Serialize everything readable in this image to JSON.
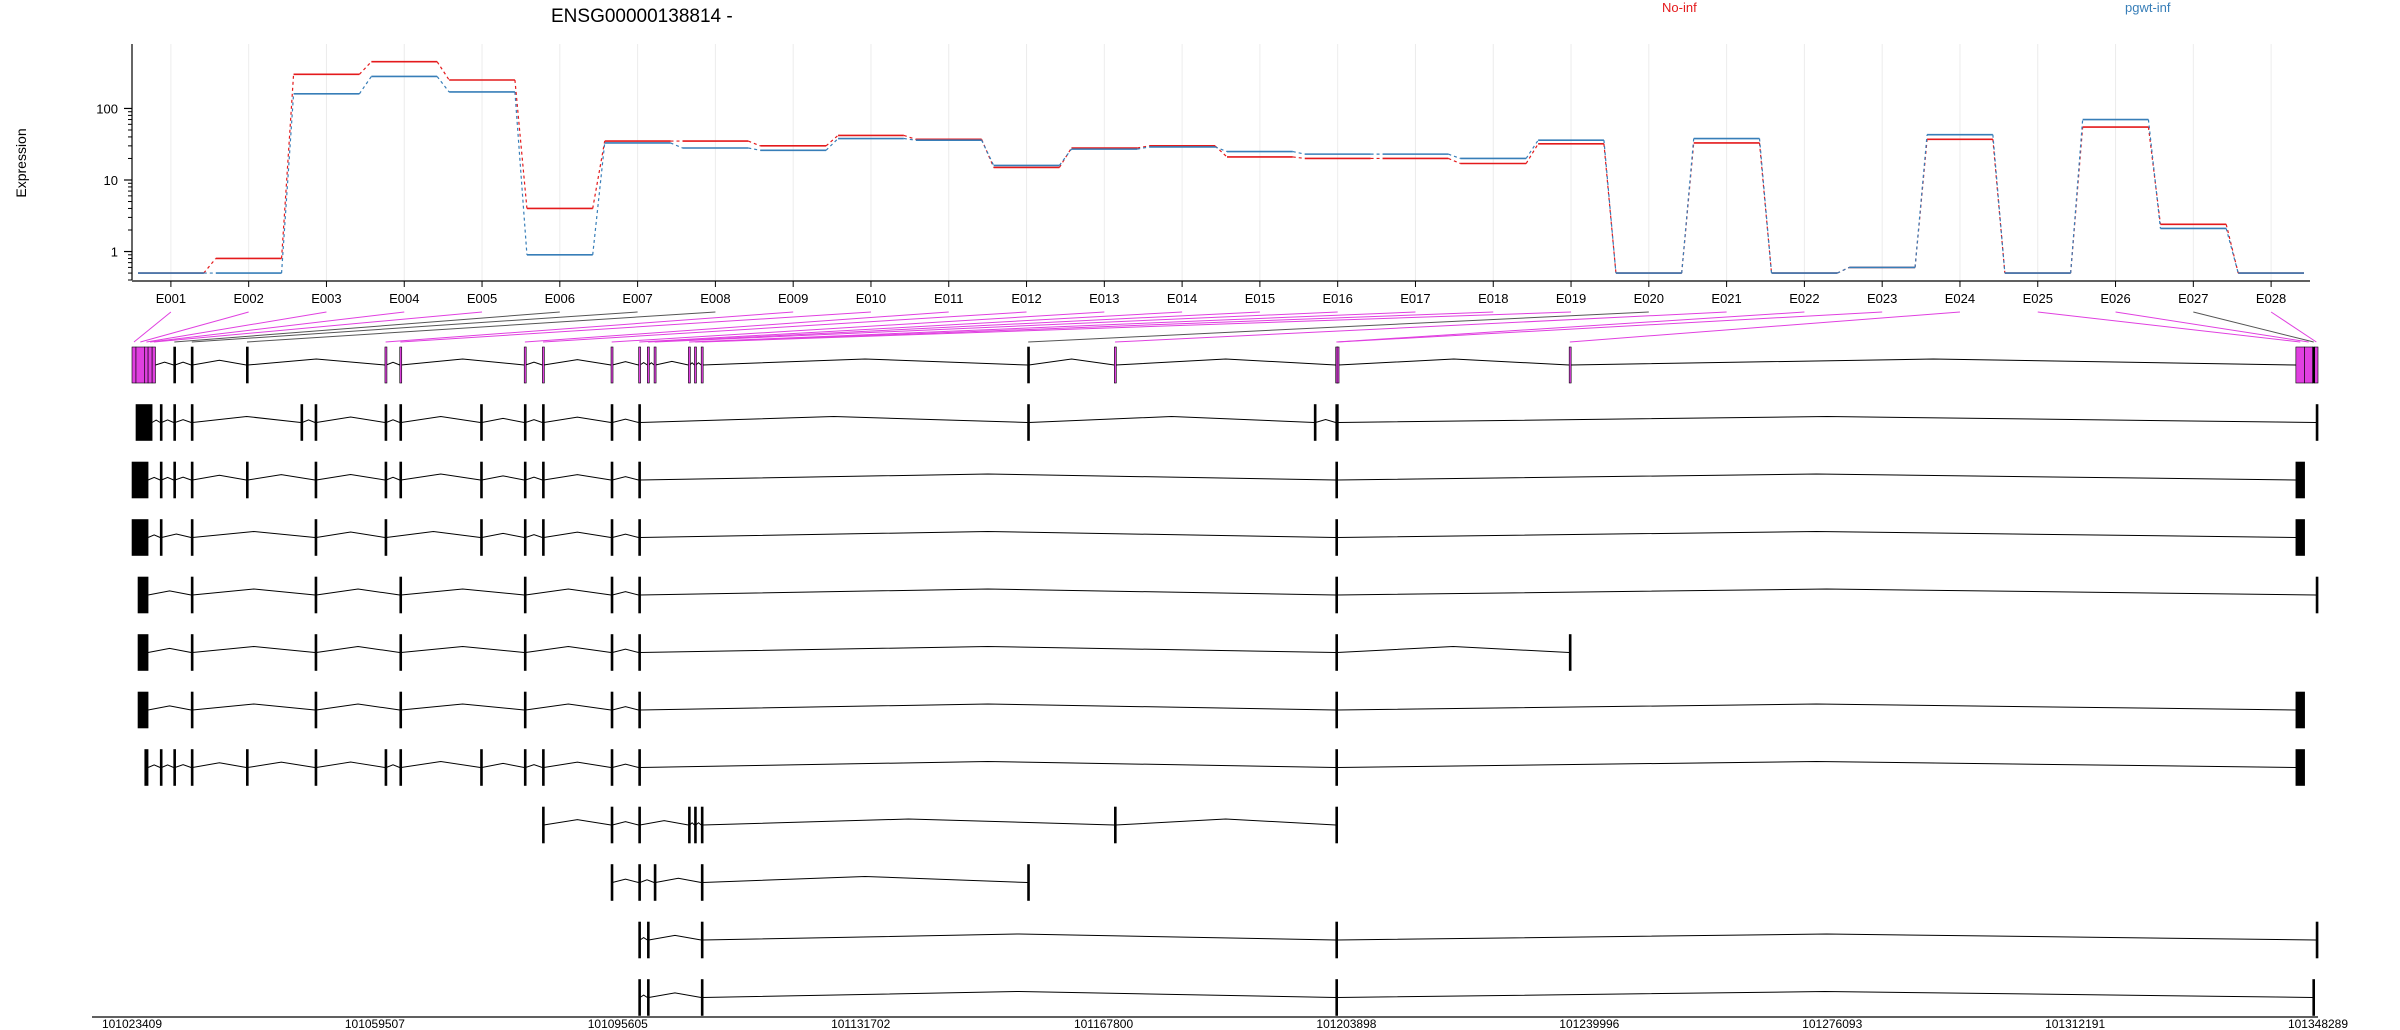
{
  "chart_data": {
    "type": "line",
    "title": "ENSG00000138814 -",
    "ylabel": "Expression",
    "yscale": "log",
    "ylim": [
      0.4,
      700
    ],
    "yticks": [
      {
        "value": 1,
        "label": "1"
      },
      {
        "value": 10,
        "label": "10"
      },
      {
        "value": 100,
        "label": "100"
      }
    ],
    "grid": true,
    "legend_position": "top-right",
    "categories": [
      "E001",
      "E002",
      "E003",
      "E004",
      "E005",
      "E006",
      "E007",
      "E008",
      "E009",
      "E010",
      "E011",
      "E012",
      "E013",
      "E014",
      "E015",
      "E016",
      "E017",
      "E018",
      "E019",
      "E020",
      "E021",
      "E022",
      "E023",
      "E024",
      "E025",
      "E026",
      "E027",
      "E028"
    ],
    "series": [
      {
        "name": "No-inf",
        "color": "#e41a1c",
        "values": [
          0.5,
          0.8,
          300,
          450,
          250,
          4,
          35,
          35,
          30,
          42,
          37,
          15,
          28,
          30,
          21,
          20,
          20,
          17,
          32,
          0.5,
          33,
          0.5,
          0.6,
          37,
          0.5,
          55,
          2.4,
          0.5
        ]
      },
      {
        "name": "pgwt-inf",
        "color": "#377eb8",
        "values": [
          0.5,
          0.5,
          160,
          280,
          170,
          0.9,
          33,
          28,
          26,
          38,
          36,
          16,
          27,
          29,
          25,
          23,
          23,
          20,
          36,
          0.5,
          38,
          0.5,
          0.6,
          43,
          0.5,
          70,
          2.1,
          0.5
        ]
      }
    ],
    "gene_model": {
      "genomic_range": [
        101023409,
        101348289
      ],
      "axis_labels": [
        "101023409",
        "101059507",
        "101095605",
        "101131702",
        "101167800",
        "101203898",
        "101239996",
        "101276093",
        "101312191",
        "101348289"
      ],
      "highlight_color": "#e040e0",
      "highlighted_exons": [
        "E001",
        "E002",
        "E003",
        "E004",
        "E005",
        "E009",
        "E010",
        "E011",
        "E012",
        "E013",
        "E014",
        "E015",
        "E016",
        "E017",
        "E018",
        "E019",
        "E021",
        "E022",
        "E023",
        "E024",
        "E025",
        "E026",
        "E028"
      ],
      "exon_bins": [
        {
          "id": "E001",
          "start": 101023409,
          "end": 101024000
        },
        {
          "id": "E002",
          "start": 101024000,
          "end": 101025300
        },
        {
          "id": "E003",
          "start": 101025300,
          "end": 101025800
        },
        {
          "id": "E004",
          "start": 101025800,
          "end": 101026400
        },
        {
          "id": "E005",
          "start": 101026400,
          "end": 101026900
        },
        {
          "id": "E006",
          "start": 101029600,
          "end": 101029800
        },
        {
          "id": "E007",
          "start": 101032200,
          "end": 101032400
        },
        {
          "id": "E008",
          "start": 101040400,
          "end": 101040600
        },
        {
          "id": "E009",
          "start": 101061000,
          "end": 101061200
        },
        {
          "id": "E010",
          "start": 101063200,
          "end": 101063400
        },
        {
          "id": "E011",
          "start": 101081700,
          "end": 101081900
        },
        {
          "id": "E012",
          "start": 101084400,
          "end": 101084600
        },
        {
          "id": "E013",
          "start": 101094600,
          "end": 101094800
        },
        {
          "id": "E014",
          "start": 101098700,
          "end": 101098900
        },
        {
          "id": "E015",
          "start": 101100000,
          "end": 101100200
        },
        {
          "id": "E016",
          "start": 101101000,
          "end": 101101200
        },
        {
          "id": "E017",
          "start": 101106100,
          "end": 101106300
        },
        {
          "id": "E018",
          "start": 101107000,
          "end": 101107200
        },
        {
          "id": "E019",
          "start": 101108000,
          "end": 101108200
        },
        {
          "id": "E020",
          "start": 101156500,
          "end": 101156700
        },
        {
          "id": "E021",
          "start": 101169400,
          "end": 101169600
        },
        {
          "id": "E022",
          "start": 101202300,
          "end": 101202500
        },
        {
          "id": "E023",
          "start": 101202500,
          "end": 101202700
        },
        {
          "id": "E024",
          "start": 101237000,
          "end": 101237200
        },
        {
          "id": "E025",
          "start": 101345000,
          "end": 101346300
        },
        {
          "id": "E026",
          "start": 101346300,
          "end": 101347500
        },
        {
          "id": "E027",
          "start": 101347500,
          "end": 101347800
        },
        {
          "id": "E028",
          "start": 101347800,
          "end": 101348289
        }
      ],
      "transcripts": [
        {
          "exons": [
            [
              101024000,
              101026400
            ],
            [
              101027600,
              101027800
            ],
            [
              101029600,
              101029800
            ],
            [
              101032200,
              101032400
            ],
            [
              101048500,
              101048700
            ],
            [
              101050600,
              101050800
            ],
            [
              101061000,
              101061200
            ],
            [
              101063200,
              101063400
            ],
            [
              101075200,
              101075400
            ],
            [
              101081700,
              101081900
            ],
            [
              101084400,
              101084600
            ],
            [
              101094600,
              101094800
            ],
            [
              101098700,
              101098900
            ],
            [
              101156500,
              101156700
            ],
            [
              101199100,
              101199300
            ],
            [
              101202300,
              101202700
            ],
            [
              101348000,
              101348289
            ]
          ]
        },
        {
          "exons": [
            [
              101023409,
              101025800
            ],
            [
              101027600,
              101027800
            ],
            [
              101029600,
              101029800
            ],
            [
              101032200,
              101032400
            ],
            [
              101040400,
              101040600
            ],
            [
              101050600,
              101050800
            ],
            [
              101061000,
              101061200
            ],
            [
              101063200,
              101063400
            ],
            [
              101075200,
              101075400
            ],
            [
              101081700,
              101081900
            ],
            [
              101084400,
              101084600
            ],
            [
              101094600,
              101094800
            ],
            [
              101098700,
              101098900
            ],
            [
              101202300,
              101202500
            ],
            [
              101345000,
              101346300
            ]
          ]
        },
        {
          "exons": [
            [
              101023409,
              101025800
            ],
            [
              101027600,
              101027800
            ],
            [
              101032200,
              101032400
            ],
            [
              101050600,
              101050800
            ],
            [
              101061000,
              101061200
            ],
            [
              101075200,
              101075400
            ],
            [
              101081700,
              101081900
            ],
            [
              101084400,
              101084600
            ],
            [
              101094600,
              101094800
            ],
            [
              101098700,
              101098900
            ],
            [
              101202300,
              101202500
            ],
            [
              101345000,
              101346300
            ]
          ]
        },
        {
          "exons": [
            [
              101024300,
              101025800
            ],
            [
              101032200,
              101032400
            ],
            [
              101050600,
              101050800
            ],
            [
              101063200,
              101063400
            ],
            [
              101081700,
              101081900
            ],
            [
              101094600,
              101094800
            ],
            [
              101098700,
              101098900
            ],
            [
              101202300,
              101202500
            ],
            [
              101348000,
              101348289
            ]
          ]
        },
        {
          "exons": [
            [
              101024300,
              101025800
            ],
            [
              101032200,
              101032400
            ],
            [
              101050600,
              101050800
            ],
            [
              101063200,
              101063400
            ],
            [
              101081700,
              101081900
            ],
            [
              101094600,
              101094800
            ],
            [
              101098700,
              101098900
            ],
            [
              101202300,
              101202500
            ],
            [
              101237000,
              101237200
            ]
          ]
        },
        {
          "exons": [
            [
              101024300,
              101025800
            ],
            [
              101032200,
              101032400
            ],
            [
              101050600,
              101050800
            ],
            [
              101063200,
              101063400
            ],
            [
              101081700,
              101081900
            ],
            [
              101094600,
              101094800
            ],
            [
              101098700,
              101098900
            ],
            [
              101202300,
              101202500
            ],
            [
              101345000,
              101346300
            ]
          ]
        },
        {
          "exons": [
            [
              101025300,
              101025800
            ],
            [
              101027600,
              101027800
            ],
            [
              101029600,
              101029800
            ],
            [
              101032200,
              101032400
            ],
            [
              101040400,
              101040600
            ],
            [
              101050600,
              101050800
            ],
            [
              101061000,
              101061200
            ],
            [
              101063200,
              101063400
            ],
            [
              101075200,
              101075400
            ],
            [
              101081700,
              101081900
            ],
            [
              101084400,
              101084600
            ],
            [
              101094600,
              101094800
            ],
            [
              101098700,
              101098900
            ],
            [
              101202300,
              101202500
            ],
            [
              101345000,
              101346300
            ]
          ]
        },
        {
          "exons": [
            [
              101084400,
              101084600
            ],
            [
              101094600,
              101094800
            ],
            [
              101098700,
              101098900
            ],
            [
              101106100,
              101106300
            ],
            [
              101107000,
              101107200
            ],
            [
              101108000,
              101108200
            ],
            [
              101169400,
              101169600
            ],
            [
              101202300,
              101202500
            ]
          ]
        },
        {
          "exons": [
            [
              101094600,
              101094800
            ],
            [
              101098700,
              101098900
            ],
            [
              101101000,
              101101200
            ],
            [
              101108000,
              101108200
            ],
            [
              101156500,
              101156700
            ]
          ]
        },
        {
          "exons": [
            [
              101098700,
              101098900
            ],
            [
              101100000,
              101100200
            ],
            [
              101108000,
              101108200
            ],
            [
              101202300,
              101202500
            ],
            [
              101348000,
              101348289
            ]
          ]
        },
        {
          "exons": [
            [
              101098700,
              101098900
            ],
            [
              101100000,
              101100200
            ],
            [
              101108000,
              101108200
            ],
            [
              101202300,
              101202500
            ],
            [
              101347500,
              101347800
            ]
          ]
        }
      ]
    }
  }
}
